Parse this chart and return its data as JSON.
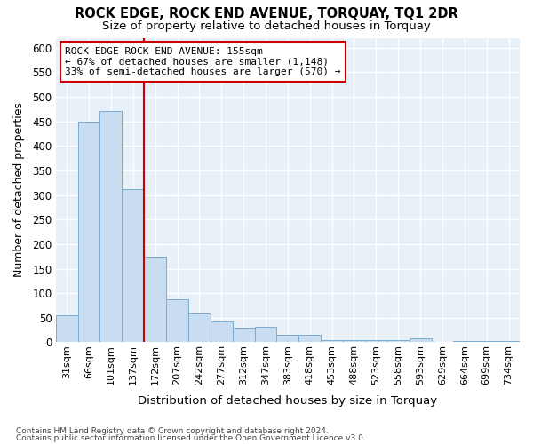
{
  "title": "ROCK EDGE, ROCK END AVENUE, TORQUAY, TQ1 2DR",
  "subtitle": "Size of property relative to detached houses in Torquay",
  "xlabel": "Distribution of detached houses by size in Torquay",
  "ylabel": "Number of detached properties",
  "bar_color": "#c8ddf0",
  "bar_edge_color": "#7aadd4",
  "background_color": "#e8f0f8",
  "grid_color": "#ffffff",
  "categories": [
    "31sqm",
    "66sqm",
    "101sqm",
    "137sqm",
    "172sqm",
    "207sqm",
    "242sqm",
    "277sqm",
    "312sqm",
    "347sqm",
    "383sqm",
    "418sqm",
    "453sqm",
    "488sqm",
    "523sqm",
    "558sqm",
    "593sqm",
    "629sqm",
    "664sqm",
    "699sqm",
    "734sqm"
  ],
  "values": [
    55,
    450,
    470,
    311,
    175,
    88,
    58,
    42,
    30,
    32,
    15,
    15,
    5,
    5,
    5,
    5,
    8,
    0,
    3,
    3,
    3
  ],
  "vline_x": 3.5,
  "vline_color": "#cc0000",
  "annotation_title": "ROCK EDGE ROCK END AVENUE: 155sqm",
  "annotation_line1": "← 67% of detached houses are smaller (1,148)",
  "annotation_line2": "33% of semi-detached houses are larger (570) →",
  "ann_box_edgecolor": "#cc0000",
  "ylim_max": 620,
  "yticks": [
    0,
    50,
    100,
    150,
    200,
    250,
    300,
    350,
    400,
    450,
    500,
    550,
    600
  ],
  "footnote1": "Contains HM Land Registry data © Crown copyright and database right 2024.",
  "footnote2": "Contains public sector information licensed under the Open Government Licence v3.0."
}
